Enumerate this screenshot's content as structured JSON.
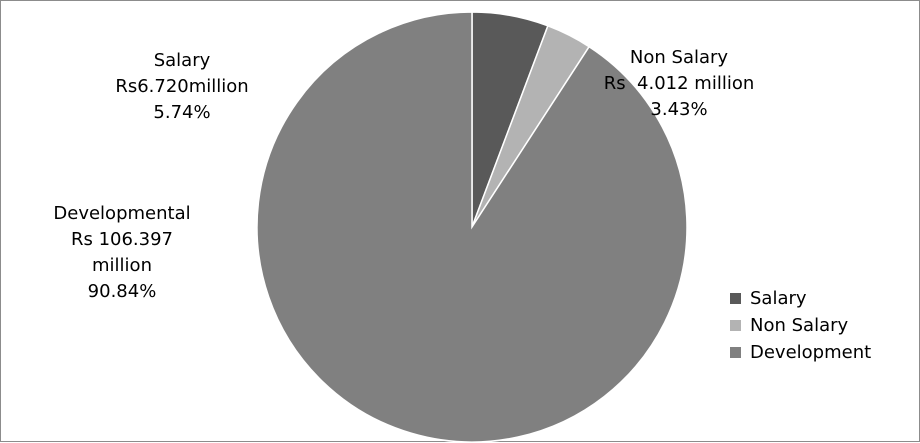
{
  "chart_data": {
    "type": "pie",
    "title": "",
    "slices": [
      {
        "name": "Salary",
        "value": 5.74,
        "color": "#595959"
      },
      {
        "name": "Non Salary",
        "value": 3.43,
        "color": "#b3b3b3"
      },
      {
        "name": "Development",
        "value": 90.84,
        "color": "#808080"
      }
    ],
    "data_labels": [
      {
        "lines": [
          "Salary",
          "Rs6.720million",
          "5.74%"
        ]
      },
      {
        "lines": [
          "Non Salary",
          "Rs  4.012 million",
          "3.43%"
        ]
      },
      {
        "lines": [
          "Developmental",
          "Rs 106.397",
          "million",
          "90.84%"
        ]
      }
    ],
    "legend": {
      "position": "right",
      "items": [
        "Salary",
        "Non Salary",
        "Development"
      ]
    },
    "start_angle": "top, clockwise"
  }
}
